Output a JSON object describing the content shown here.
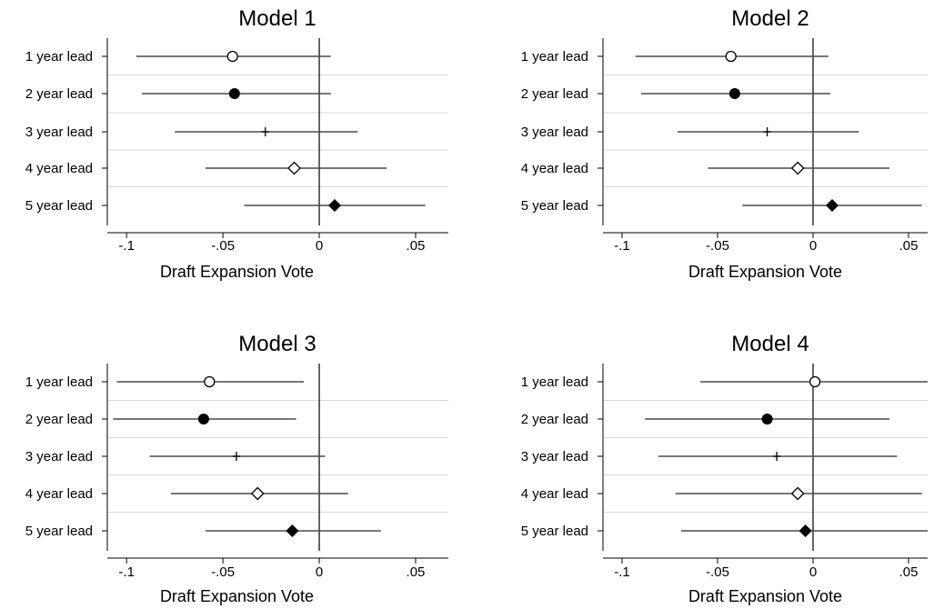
{
  "chart_data": [
    {
      "type": "coefficient_plot",
      "title": "Model 1",
      "xlabel": "Draft Expansion Vote",
      "xlim": [
        -0.11,
        0.067
      ],
      "xticks": [
        -0.1,
        -0.05,
        0,
        0.05
      ],
      "xtick_labels": [
        "-.1",
        "-.05",
        "0",
        ".05"
      ],
      "reference_line": 0,
      "categories": [
        "1 year lead",
        "2 year lead",
        "3 year lead",
        "4 year lead",
        "5 year lead"
      ],
      "markers": [
        "circle-open",
        "circle-filled",
        "plus",
        "diamond-open",
        "diamond-filled"
      ],
      "estimates": [
        -0.045,
        -0.044,
        -0.028,
        -0.013,
        0.008
      ],
      "ci_low": [
        -0.095,
        -0.092,
        -0.075,
        -0.059,
        -0.039
      ],
      "ci_high": [
        0.006,
        0.006,
        0.02,
        0.035,
        0.055
      ]
    },
    {
      "type": "coefficient_plot",
      "title": "Model 2",
      "xlabel": "Draft Expansion Vote",
      "xlim": [
        -0.11,
        0.06
      ],
      "xticks": [
        -0.1,
        -0.05,
        0,
        0.05
      ],
      "xtick_labels": [
        "-.1",
        "-.05",
        "0",
        ".05"
      ],
      "reference_line": 0,
      "categories": [
        "1 year lead",
        "2 year lead",
        "3 year lead",
        "4 year lead",
        "5 year lead"
      ],
      "markers": [
        "circle-open",
        "circle-filled",
        "plus",
        "diamond-open",
        "diamond-filled"
      ],
      "estimates": [
        -0.043,
        -0.041,
        -0.024,
        -0.008,
        0.01
      ],
      "ci_low": [
        -0.093,
        -0.09,
        -0.071,
        -0.055,
        -0.037
      ],
      "ci_high": [
        0.008,
        0.009,
        0.024,
        0.04,
        0.057
      ]
    },
    {
      "type": "coefficient_plot",
      "title": "Model 3",
      "xlabel": "Draft Expansion Vote",
      "xlim": [
        -0.11,
        0.067
      ],
      "xticks": [
        -0.1,
        -0.05,
        0,
        0.05
      ],
      "xtick_labels": [
        "-.1",
        "-.05",
        "0",
        ".05"
      ],
      "reference_line": 0,
      "categories": [
        "1 year lead",
        "2 year lead",
        "3 year lead",
        "4 year lead",
        "5 year lead"
      ],
      "markers": [
        "circle-open",
        "circle-filled",
        "plus",
        "diamond-open",
        "diamond-filled"
      ],
      "estimates": [
        -0.057,
        -0.06,
        -0.043,
        -0.032,
        -0.014
      ],
      "ci_low": [
        -0.105,
        -0.107,
        -0.088,
        -0.077,
        -0.059
      ],
      "ci_high": [
        -0.008,
        -0.012,
        0.003,
        0.015,
        0.032
      ]
    },
    {
      "type": "coefficient_plot",
      "title": "Model 4",
      "xlabel": "Draft Expansion Vote",
      "xlim": [
        -0.11,
        0.06
      ],
      "xticks": [
        -0.1,
        -0.05,
        0,
        0.05
      ],
      "xtick_labels": [
        "-.1",
        "-.05",
        "0",
        ".05"
      ],
      "reference_line": 0,
      "categories": [
        "1 year lead",
        "2 year lead",
        "3 year lead",
        "4 year lead",
        "5 year lead"
      ],
      "markers": [
        "circle-open",
        "circle-filled",
        "plus",
        "diamond-open",
        "diamond-filled"
      ],
      "estimates": [
        0.001,
        -0.024,
        -0.019,
        -0.008,
        -0.004
      ],
      "ci_low": [
        -0.059,
        -0.088,
        -0.081,
        -0.072,
        -0.069
      ],
      "ci_high": [
        0.062,
        0.04,
        0.044,
        0.057,
        0.062
      ]
    }
  ],
  "colors": {
    "background": "#ffffff",
    "marker": "#000000",
    "ci_line": "#4a4a4a",
    "axis": "#000000",
    "band_separator": "#d9d9d9"
  }
}
